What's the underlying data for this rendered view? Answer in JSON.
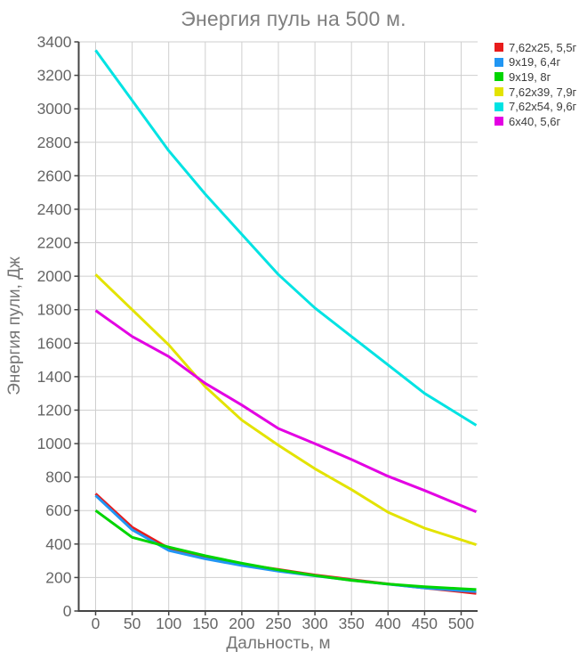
{
  "title": "Энергия пуль на 500 м.",
  "chart_data": {
    "type": "line",
    "title": "Энергия пуль на 500 м.",
    "xlabel": "Дальность, м",
    "ylabel": "Энергия пули, Дж",
    "x": [
      0,
      50,
      100,
      150,
      200,
      250,
      300,
      350,
      400,
      450,
      500
    ],
    "xlim": [
      0,
      500
    ],
    "ylim": [
      0,
      3400
    ],
    "x_tick_step": 50,
    "y_tick_step": 200,
    "grid": true,
    "legend_position": "top-right",
    "series": [
      {
        "name": "7,62x25, 5,5г",
        "color": "#e81c1c",
        "values": [
          700,
          500,
          375,
          320,
          280,
          248,
          215,
          188,
          162,
          138,
          115
        ]
      },
      {
        "name": "9x19, 6,4г",
        "color": "#2196f3",
        "values": [
          690,
          485,
          362,
          312,
          272,
          238,
          210,
          184,
          160,
          138,
          122
        ]
      },
      {
        "name": "9x19, 8г",
        "color": "#00d500",
        "values": [
          600,
          440,
          382,
          330,
          285,
          246,
          212,
          183,
          161,
          145,
          133
        ]
      },
      {
        "name": "7,62x39, 7,9г",
        "color": "#e3e300",
        "values": [
          2010,
          1800,
          1590,
          1340,
          1140,
          990,
          850,
          725,
          590,
          495,
          425
        ]
      },
      {
        "name": "7,62x54, 9,6г",
        "color": "#00e3e3",
        "values": [
          3350,
          3050,
          2750,
          2490,
          2250,
          2010,
          1810,
          1640,
          1470,
          1300,
          1165
        ]
      },
      {
        "name": "6x40, 5,6г",
        "color": "#e300e3",
        "values": [
          1795,
          1640,
          1520,
          1360,
          1230,
          1090,
          1000,
          905,
          805,
          720,
          630
        ]
      }
    ]
  },
  "colors": {
    "background": "#ffffff",
    "grid": "#cfcfcf",
    "axis": "#444444",
    "tick_text": "#666666",
    "title_text": "#7f7f7f",
    "axis_label_text": "#757575",
    "legend_text": "#3c3c3c"
  }
}
